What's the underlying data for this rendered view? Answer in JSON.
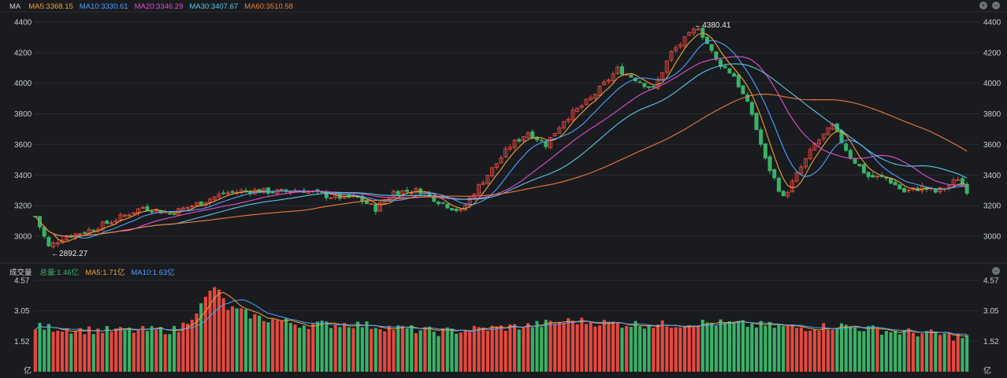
{
  "header_price": {
    "tag": "MA",
    "indicators": [
      {
        "label": "MA5:3368.15",
        "color": "#f0a33a"
      },
      {
        "label": "MA10:3330.61",
        "color": "#4ea1ff"
      },
      {
        "label": "MA20:3346.29",
        "color": "#e04fd0"
      },
      {
        "label": "MA30:3407.67",
        "color": "#59c8e6"
      },
      {
        "label": "MA60:3510.58",
        "color": "#ef7b3a"
      }
    ]
  },
  "header_volume": {
    "tag": "成交量",
    "indicators": [
      {
        "label": "总量:1.46亿",
        "color": "#3fb56b"
      },
      {
        "label": "MA5:1.71亿",
        "color": "#f0a33a"
      },
      {
        "label": "MA10:1.63亿",
        "color": "#4ea1ff"
      }
    ]
  },
  "controls": {
    "add": "+",
    "remove": "−"
  },
  "colors": {
    "up": "#e5493f",
    "down": "#39b267",
    "grid": "#2b2d33",
    "axis_text": "#c9ccd1",
    "bg": "#1a1b1f"
  },
  "annotations": {
    "high": "←4380.41",
    "low": "←2892.27"
  },
  "chart_data": [
    {
      "type": "candlestick",
      "title": "",
      "ylim": [
        2850,
        4420
      ],
      "y_ticks": [
        "4400",
        "4200",
        "4000",
        "3800",
        "3600",
        "3400",
        "3200",
        "3000"
      ],
      "y_tick_values": [
        4400,
        4200,
        4000,
        3800,
        3600,
        3400,
        3200,
        3000
      ],
      "high_point": {
        "value": 4380.41,
        "index": 148
      },
      "low_point": {
        "value": 2892.27,
        "index": 3
      },
      "series": [
        {
          "name": "MA5",
          "color": "#f0a33a"
        },
        {
          "name": "MA10",
          "color": "#4ea1ff"
        },
        {
          "name": "MA20",
          "color": "#e04fd0"
        },
        {
          "name": "MA30",
          "color": "#59c8e6"
        },
        {
          "name": "MA60",
          "color": "#ef7b3a"
        }
      ],
      "close_path": [
        [
          0,
          3130
        ],
        [
          3,
          2930
        ],
        [
          6,
          2990
        ],
        [
          12,
          3040
        ],
        [
          18,
          3110
        ],
        [
          24,
          3190
        ],
        [
          30,
          3150
        ],
        [
          36,
          3210
        ],
        [
          42,
          3280
        ],
        [
          48,
          3300
        ],
        [
          54,
          3290
        ],
        [
          60,
          3300
        ],
        [
          66,
          3260
        ],
        [
          72,
          3250
        ],
        [
          76,
          3180
        ],
        [
          80,
          3290
        ],
        [
          86,
          3300
        ],
        [
          90,
          3230
        ],
        [
          95,
          3160
        ],
        [
          98,
          3290
        ],
        [
          102,
          3440
        ],
        [
          106,
          3590
        ],
        [
          110,
          3680
        ],
        [
          114,
          3600
        ],
        [
          118,
          3760
        ],
        [
          124,
          3900
        ],
        [
          130,
          4090
        ],
        [
          134,
          4030
        ],
        [
          138,
          3960
        ],
        [
          142,
          4200
        ],
        [
          148,
          4370
        ],
        [
          152,
          4150
        ],
        [
          156,
          4050
        ],
        [
          160,
          3800
        ],
        [
          163,
          3500
        ],
        [
          167,
          3250
        ],
        [
          170,
          3400
        ],
        [
          174,
          3600
        ],
        [
          178,
          3720
        ],
        [
          182,
          3520
        ],
        [
          186,
          3390
        ],
        [
          190,
          3380
        ],
        [
          194,
          3290
        ],
        [
          198,
          3320
        ],
        [
          201,
          3290
        ],
        [
          204,
          3330
        ],
        [
          206,
          3380
        ],
        [
          208,
          3300
        ]
      ]
    },
    {
      "type": "bar",
      "title": "",
      "ylim": [
        0,
        4.57
      ],
      "y_ticks": [
        "4.57",
        "3.05",
        "1.52",
        "亿"
      ],
      "y_tick_values": [
        4.57,
        3.05,
        1.52,
        0
      ],
      "series": [
        {
          "name": "MA5",
          "color": "#f0a33a"
        },
        {
          "name": "MA10",
          "color": "#4ea1ff"
        }
      ],
      "profile": [
        [
          0,
          2.25
        ],
        [
          10,
          2.1
        ],
        [
          20,
          2.05
        ],
        [
          32,
          2.1
        ],
        [
          37,
          3.3
        ],
        [
          40,
          4.3
        ],
        [
          43,
          3.2
        ],
        [
          50,
          2.7
        ],
        [
          60,
          2.35
        ],
        [
          70,
          2.4
        ],
        [
          80,
          2.2
        ],
        [
          90,
          2.0
        ],
        [
          100,
          2.15
        ],
        [
          110,
          2.3
        ],
        [
          120,
          2.55
        ],
        [
          130,
          2.4
        ],
        [
          140,
          2.35
        ],
        [
          150,
          2.45
        ],
        [
          160,
          2.35
        ],
        [
          170,
          2.2
        ],
        [
          180,
          2.3
        ],
        [
          190,
          2.05
        ],
        [
          200,
          1.9
        ],
        [
          208,
          1.7
        ]
      ]
    }
  ]
}
